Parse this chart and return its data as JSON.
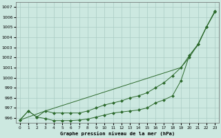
{
  "title": "Graphe pression niveau de la mer (hPa)",
  "bg_color": "#cce8e0",
  "grid_color": "#aaccc4",
  "line_color": "#2d6a2d",
  "xlim": [
    -0.5,
    23.5
  ],
  "ylim": [
    995.5,
    1007.5
  ],
  "yticks": [
    996,
    997,
    998,
    999,
    1000,
    1001,
    1002,
    1003,
    1004,
    1005,
    1006,
    1007
  ],
  "xticks": [
    0,
    1,
    2,
    3,
    4,
    5,
    6,
    7,
    8,
    9,
    10,
    11,
    12,
    13,
    14,
    15,
    16,
    17,
    18,
    19,
    20,
    21,
    22,
    23
  ],
  "series1_x": [
    0,
    1,
    2,
    3,
    4,
    5,
    6,
    7,
    8,
    9,
    10,
    11,
    12,
    13,
    14,
    15,
    16,
    17,
    18,
    19,
    20,
    21,
    22,
    23
  ],
  "series1_y": [
    995.8,
    996.7,
    996.1,
    995.95,
    995.75,
    995.75,
    995.75,
    995.8,
    995.9,
    996.1,
    996.3,
    996.5,
    996.6,
    996.7,
    996.8,
    997.0,
    997.5,
    997.8,
    998.2,
    999.7,
    1002.2,
    1003.3,
    1005.0,
    1006.6
  ],
  "series2_x": [
    0,
    1,
    2,
    3,
    4,
    5,
    6,
    7,
    8,
    9,
    10,
    11,
    12,
    13,
    14,
    15,
    16,
    17,
    18,
    19,
    20,
    21,
    22,
    23
  ],
  "series2_y": [
    995.8,
    996.7,
    996.1,
    996.7,
    996.5,
    996.5,
    996.5,
    996.5,
    996.7,
    997.0,
    997.3,
    997.5,
    997.7,
    998.0,
    998.2,
    998.5,
    999.0,
    999.5,
    1000.2,
    1001.0,
    1002.0,
    1003.3,
    1005.0,
    1006.5
  ],
  "series3_x": [
    0,
    3,
    19,
    20,
    21,
    22,
    23
  ],
  "series3_y": [
    995.8,
    996.7,
    1001.0,
    1002.2,
    1003.2,
    1005.0,
    1006.5
  ]
}
